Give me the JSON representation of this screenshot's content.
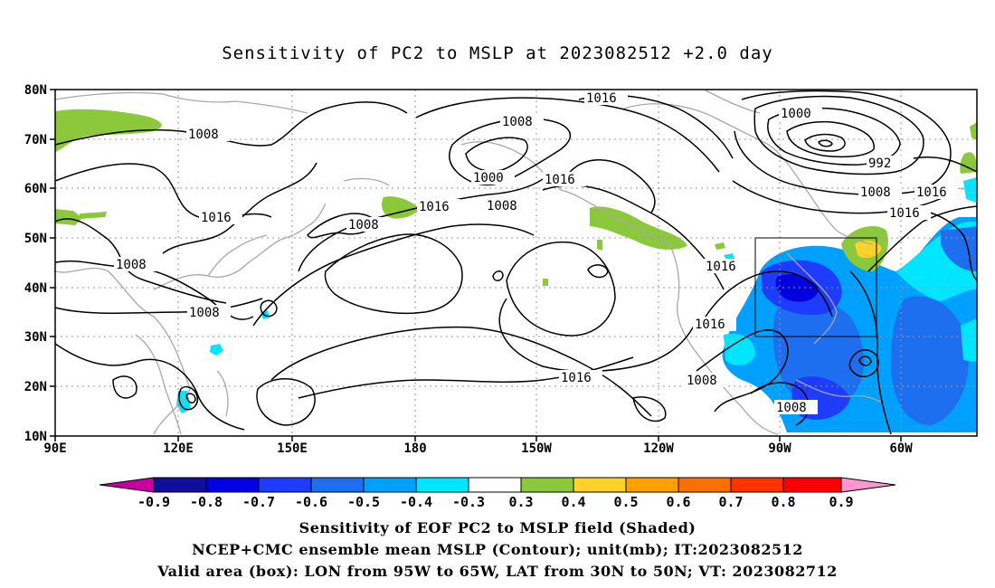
{
  "title": "Sensitivity of PC2 to MSLP at 2023082512 +2.0 day",
  "map": {
    "lat_labels": [
      "80N",
      "70N",
      "60N",
      "50N",
      "40N",
      "30N",
      "20N",
      "10N"
    ],
    "lon_labels": [
      "90E",
      "120E",
      "150E",
      "180",
      "150W",
      "120W",
      "90W",
      "60W"
    ],
    "contour_labels": [
      {
        "text": "1016"
      },
      {
        "text": "1008"
      },
      {
        "text": "1000"
      },
      {
        "text": "992"
      },
      {
        "text": "1008"
      },
      {
        "text": "1016"
      },
      {
        "text": "1016"
      },
      {
        "text": "1008"
      },
      {
        "text": "1000"
      },
      {
        "text": "1008"
      },
      {
        "text": "1016"
      },
      {
        "text": "1016"
      },
      {
        "text": "1008"
      },
      {
        "text": "1016"
      },
      {
        "text": "1008"
      },
      {
        "text": "1008"
      },
      {
        "text": "1016"
      },
      {
        "text": "1016"
      },
      {
        "text": "1008"
      },
      {
        "text": "1016"
      },
      {
        "text": "1008"
      }
    ],
    "valid_box": {
      "lon_min": "95W",
      "lon_max": "65W",
      "lat_min": "30N",
      "lat_max": "50N"
    }
  },
  "colorbar": {
    "labels": [
      "-0.9",
      "-0.8",
      "-0.7",
      "-0.6",
      "-0.5",
      "-0.4",
      "-0.3",
      "0.3",
      "0.4",
      "0.5",
      "0.6",
      "0.7",
      "0.8",
      "0.9"
    ],
    "colors": [
      "#0f0f9b",
      "#0000e0",
      "#1e3cff",
      "#1e6ef0",
      "#00a0ff",
      "#00e6ff",
      "#ffffff",
      "#8cc83c",
      "#ffd22a",
      "#ffa000",
      "#ff6e00",
      "#ff3200",
      "#ff0000"
    ],
    "left_arrow_color": "#c800a0",
    "right_arrow_color": "#ff96d2"
  },
  "captions": [
    "Sensitivity of EOF PC2 to MSLP field (Shaded)",
    "NCEP+CMC ensemble mean MSLP (Contour); unit(mb); IT:2023082512",
    "Valid area (box): LON from 95W to 65W, LAT from 30N to 50N; VT: 2023082712"
  ]
}
